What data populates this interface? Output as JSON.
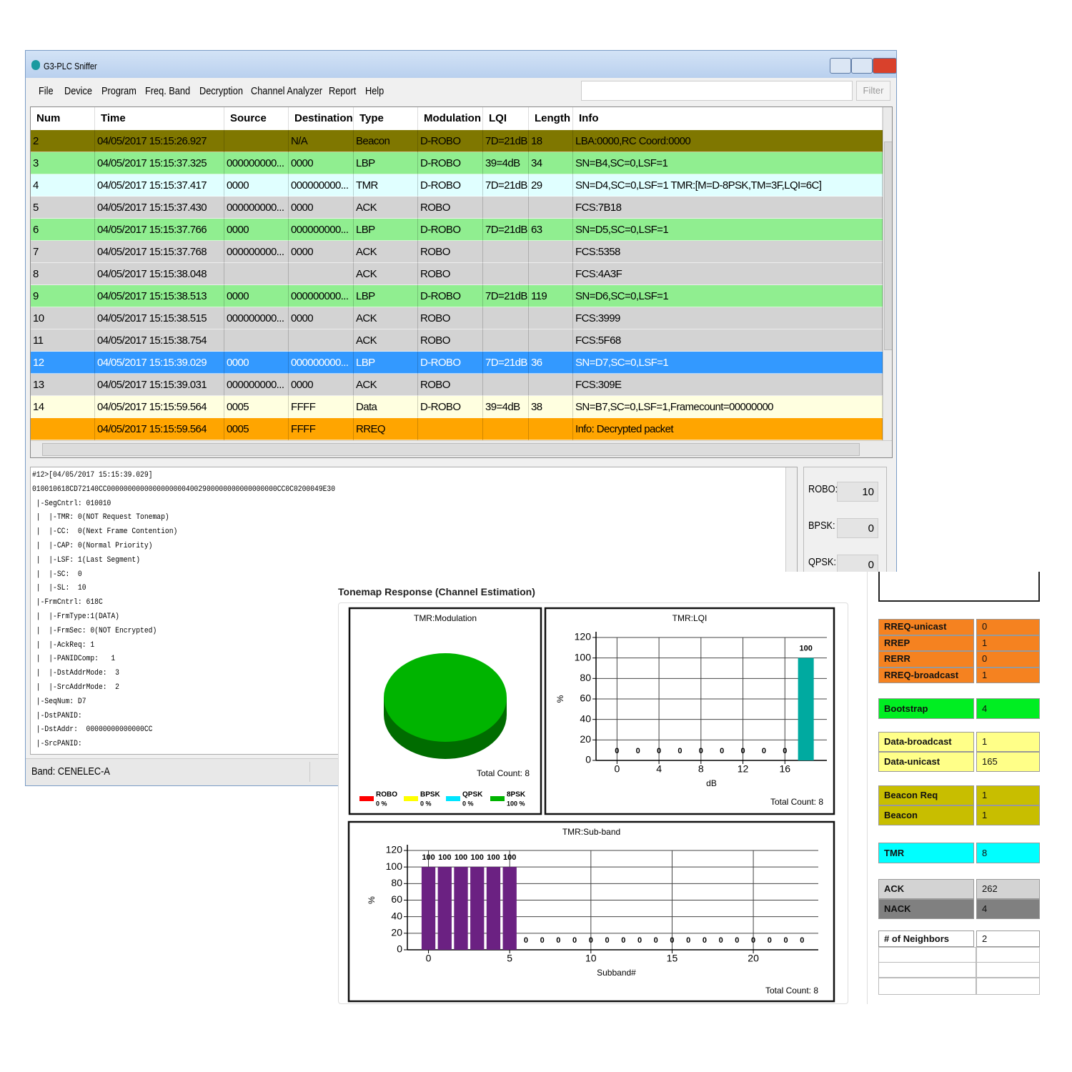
{
  "window": {
    "title": "G3-PLC Sniffer",
    "menu": [
      "File",
      "Device",
      "Program",
      "Freq. Band",
      "Decryption",
      "Channel Analyzer",
      "Report",
      "Help"
    ],
    "filter_button": "Filter"
  },
  "packet_table": {
    "columns": [
      "Num",
      "Time",
      "Source",
      "Destination",
      "Type",
      "Modulation",
      "LQI",
      "Length",
      "Info"
    ],
    "rows": [
      {
        "cells": [
          2,
          "04/05/2017 15:15:26.927",
          null,
          "N/A",
          "Beacon",
          "D-ROBO",
          "7D=21dB",
          18,
          "LBA:0000,RC Coord:0000"
        ],
        "color": "#7f7700"
      },
      {
        "cells": [
          3,
          "04/05/2017 15:15:37.325",
          "000000000...",
          "0000",
          "LBP",
          "D-ROBO",
          "39=4dB",
          34,
          "SN=B4,SC=0,LSF=1"
        ],
        "color": "#90ee90"
      },
      {
        "cells": [
          4,
          "04/05/2017 15:15:37.417",
          "0000",
          "000000000...",
          "TMR",
          "D-ROBO",
          "7D=21dB",
          29,
          "SN=D4,SC=0,LSF=1 TMR:[M=D-8PSK,TM=3F,LQI=6C]"
        ],
        "color": "#e0ffff"
      },
      {
        "cells": [
          5,
          "04/05/2017 15:15:37.430",
          "000000000...",
          "0000",
          "ACK",
          "ROBO",
          null,
          null,
          "FCS:7B18"
        ],
        "color": "#d3d3d3"
      },
      {
        "cells": [
          6,
          "04/05/2017 15:15:37.766",
          "0000",
          "000000000...",
          "LBP",
          "D-ROBO",
          "7D=21dB",
          63,
          "SN=D5,SC=0,LSF=1"
        ],
        "color": "#90ee90"
      },
      {
        "cells": [
          7,
          "04/05/2017 15:15:37.768",
          "000000000...",
          "0000",
          "ACK",
          "ROBO",
          null,
          null,
          "FCS:5358"
        ],
        "color": "#d3d3d3"
      },
      {
        "cells": [
          8,
          "04/05/2017 15:15:38.048",
          null,
          null,
          "ACK",
          "ROBO",
          null,
          null,
          "FCS:4A3F"
        ],
        "color": "#d3d3d3"
      },
      {
        "cells": [
          9,
          "04/05/2017 15:15:38.513",
          "0000",
          "000000000...",
          "LBP",
          "D-ROBO",
          "7D=21dB",
          119,
          "SN=D6,SC=0,LSF=1"
        ],
        "color": "#90ee90"
      },
      {
        "cells": [
          10,
          "04/05/2017 15:15:38.515",
          "000000000...",
          "0000",
          "ACK",
          "ROBO",
          null,
          null,
          "FCS:3999"
        ],
        "color": "#d3d3d3"
      },
      {
        "cells": [
          11,
          "04/05/2017 15:15:38.754",
          null,
          null,
          "ACK",
          "ROBO",
          null,
          null,
          "FCS:5F68"
        ],
        "color": "#d3d3d3"
      },
      {
        "cells": [
          12,
          "04/05/2017 15:15:39.029",
          "0000",
          "000000000...",
          "LBP",
          "D-ROBO",
          "7D=21dB",
          36,
          "SN=D7,SC=0,LSF=1"
        ],
        "color": "#3399ff",
        "selected": true
      },
      {
        "cells": [
          13,
          "04/05/2017 15:15:39.031",
          "000000000...",
          "0000",
          "ACK",
          "ROBO",
          null,
          null,
          "FCS:309E"
        ],
        "color": "#d3d3d3"
      },
      {
        "cells": [
          14,
          "04/05/2017 15:15:59.564",
          "0005",
          "FFFF",
          "Data",
          "D-ROBO",
          "39=4dB",
          38,
          "SN=B7,SC=0,LSF=1,Framecount=00000000"
        ],
        "color": "#ffffe0"
      },
      {
        "cells": [
          null,
          "04/05/2017 15:15:59.564",
          "0005",
          "FFFF",
          "RREQ",
          null,
          null,
          null,
          "Info: Decrypted packet"
        ],
        "color": "#ffa500"
      }
    ]
  },
  "packet_detail": {
    "lines": [
      "#12>[04/05/2017 15:15:39.029]",
      "010010618CD72140CC00000000000000000004002900000000000000000CC0C0200049E30",
      " |-SegCntrl: 010010",
      " |  |-TMR: 0(NOT Request Tonemap)",
      " |  |-CC:  0(Next Frame Contention)",
      " |  |-CAP: 0(Normal Priority)",
      " |  |-LSF: 1(Last Segment)",
      " |  |-SC:  0",
      " |  |-SL:  10",
      " |-FrmCntrl: 618C",
      " |  |-FrmType:1(DATA)",
      " |  |-FrmSec: 0(NOT Encrypted)",
      " |  |-AckReq: 1",
      " |  |-PANIDComp:   1",
      " |  |-DstAddrMode:  3",
      " |  |-SrcAddrMode:  2",
      " |-SeqNum: D7",
      " |-DstPANID:",
      " |-DstAddr:  00000000000000CC",
      " |-SrcPANID:"
    ]
  },
  "modulation_counts": [
    {
      "label": "ROBO:",
      "value": 10
    },
    {
      "label": "BPSK:",
      "value": 0
    },
    {
      "label": "QPSK:",
      "value": 0
    }
  ],
  "status_bar": {
    "band": "Band: CENELEC-A"
  },
  "tonemap": {
    "title": "Tonemap Response (Channel Estimation)",
    "modulation_chart": {
      "type": "pie",
      "title": "TMR:Modulation",
      "categories": [
        "ROBO",
        "BPSK",
        "QPSK",
        "8PSK"
      ],
      "values": [
        0,
        0,
        0,
        100
      ],
      "value_labels": [
        "0 %",
        "0 %",
        "0 %",
        "100 %"
      ],
      "colors": [
        "#ff0000",
        "#ffff00",
        "#00e5ff",
        "#00b400"
      ],
      "footer": "Total Count: 8"
    },
    "lqi_chart": {
      "type": "bar",
      "title": "TMR:LQI",
      "x": [
        0,
        2,
        4,
        6,
        8,
        10,
        12,
        14,
        16,
        18
      ],
      "values": [
        0,
        0,
        0,
        0,
        0,
        0,
        0,
        0,
        0,
        100
      ],
      "xlim": [
        -2,
        20
      ],
      "xticks": [
        0,
        4,
        8,
        12,
        16
      ],
      "ylim": [
        0,
        120
      ],
      "yticks": [
        0,
        20,
        40,
        60,
        80,
        100,
        120
      ],
      "xlabel": "dB",
      "ylabel": "%",
      "color": "#00aaa0",
      "grid": true,
      "footer": "Total Count: 8"
    },
    "subband_chart": {
      "type": "bar",
      "title": "TMR:Sub-band",
      "x": [
        0,
        1,
        2,
        3,
        4,
        5,
        6,
        7,
        8,
        9,
        10,
        11,
        12,
        13,
        14,
        15,
        16,
        17,
        18,
        19,
        20,
        21,
        22,
        23
      ],
      "values": [
        100,
        100,
        100,
        100,
        100,
        100,
        0,
        0,
        0,
        0,
        0,
        0,
        0,
        0,
        0,
        0,
        0,
        0,
        0,
        0,
        0,
        0,
        0,
        0
      ],
      "xlim": [
        -1.3,
        24
      ],
      "xticks": [
        0,
        5,
        10,
        15,
        20
      ],
      "ylim": [
        0,
        120
      ],
      "yticks": [
        0,
        20,
        40,
        60,
        80,
        100,
        120
      ],
      "xlabel": "Subband#",
      "ylabel": "%",
      "color": "#6b2182",
      "grid": true,
      "footer": "Total Count: 8"
    }
  },
  "stats": {
    "groups": [
      {
        "rows": [
          {
            "label": "RREQ-unicast",
            "value": 0,
            "color": "#f58220"
          },
          {
            "label": "RREP",
            "value": 1,
            "color": "#f58220"
          },
          {
            "label": "RERR",
            "value": 0,
            "color": "#f58220"
          },
          {
            "label": "RREQ-broadcast",
            "value": 1,
            "color": "#f58220"
          }
        ]
      },
      {
        "rows": [
          {
            "label": "Bootstrap",
            "value": 4,
            "color": "#00ee22"
          }
        ]
      },
      {
        "rows": [
          {
            "label": "Data-broadcast",
            "value": 1,
            "color": "#ffff88"
          },
          {
            "label": "Data-unicast",
            "value": 165,
            "color": "#ffff88"
          }
        ]
      },
      {
        "rows": [
          {
            "label": "Beacon Req",
            "value": 1,
            "color": "#c8be00"
          },
          {
            "label": "Beacon",
            "value": 1,
            "color": "#c8be00"
          }
        ]
      },
      {
        "rows": [
          {
            "label": "TMR",
            "value": 8,
            "color": "#00ffff"
          }
        ]
      },
      {
        "rows": [
          {
            "label": "ACK",
            "value": 262,
            "color": "#d3d3d3"
          },
          {
            "label": "NACK",
            "value": 4,
            "color": "#808080"
          }
        ]
      },
      {
        "rows": [
          {
            "label": "# of Neighbors",
            "value": 2,
            "color": "#ffffff"
          }
        ]
      }
    ]
  }
}
